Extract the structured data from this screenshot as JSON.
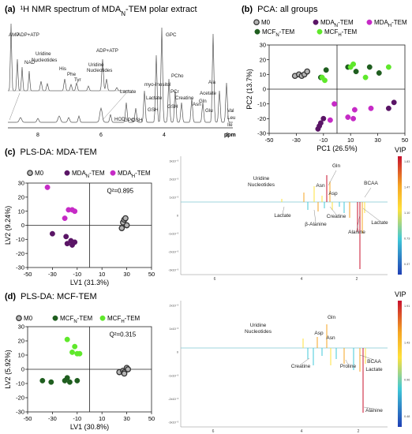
{
  "colors": {
    "m0_fill": "#b5b5b5",
    "m0_stroke": "#333333",
    "mdaN": "#5a1566",
    "mdaH": "#c62ac6",
    "mcfN": "#1f5e1f",
    "mcfH": "#5fe82b",
    "axis": "#222222",
    "spectrum": "#555555",
    "vip_top": "#c8102e",
    "vip_upper": "#f5a623",
    "vip_mid": "#ffe13b",
    "vip_lower": "#40c8d8",
    "vip_bottom": "#1f3fb5"
  },
  "panels": {
    "a": {
      "letter": "(a)",
      "title_prefix": "¹H NMR spectrum of MDA",
      "title_sub": "N",
      "title_suffix": "-TEM polar extract",
      "labels": [
        "AMP",
        "ADP+ATP",
        "NAD⁺",
        "Uridine",
        "Nucleotides",
        "His",
        "Phe",
        "Tyr",
        "ADP+ATP",
        "Uridine",
        "Nucleotides",
        "GPC",
        "Lactate",
        "myo-Inositol",
        "PCho",
        "PCr",
        "Creatine",
        "GSH",
        "Lactate",
        "GSH",
        "GPC",
        "HOD",
        "GSH",
        "Asn",
        "Gln",
        "Glu",
        "Acetate",
        "Ala",
        "Val",
        "Leu",
        "Ile"
      ],
      "ticks": [
        "8",
        "6",
        "4",
        "2",
        "ppm"
      ]
    },
    "b": {
      "letter": "(b)",
      "title": "PCA: all groups"
    },
    "c": {
      "letter": "(c)",
      "title": "PLS-DA: MDA-TEM",
      "vip": {
        "labels": [
          "Uridine",
          "Nucleotides",
          "Gln",
          "Asn",
          "Asp",
          "BCAA",
          "Lactate",
          "Creatine",
          "β-Alanine",
          "Alanine",
          "Lactate"
        ],
        "ticks": [
          "6",
          "4",
          "2"
        ]
      }
    },
    "d": {
      "letter": "(d)",
      "title": "PLS-DA: MCF-TEM",
      "vip": {
        "labels": [
          "Uridine",
          "Nucleotides",
          "Gln",
          "Asp",
          "Asn",
          "Creatine",
          "Proline",
          "BCAA",
          "Lactate",
          "Alanine"
        ],
        "ticks": [
          "6",
          "4",
          "2"
        ]
      }
    }
  },
  "chart_data": [
    {
      "id": "b",
      "type": "scatter",
      "title": "PCA: all groups",
      "xlabel": "PC1 (26.5%)",
      "ylabel": "PC2 (13.7%)",
      "xlim": [
        -50,
        50
      ],
      "ylim": [
        -30,
        30
      ],
      "xticks": [
        -50,
        -30,
        -10,
        10,
        30,
        50
      ],
      "yticks": [
        -30,
        -20,
        -10,
        0,
        10,
        20,
        30
      ],
      "legend": [
        "M0",
        "MDAN-TEM",
        "MDAH-TEM",
        "MCFN-TEM",
        "MCFH-TEM"
      ],
      "legend_display": [
        {
          "pre": "M0",
          "sub": "",
          "post": ""
        },
        {
          "pre": "MDA",
          "sub": "N",
          "post": "-TEM"
        },
        {
          "pre": "MDA",
          "sub": "H",
          "post": "-TEM"
        },
        {
          "pre": "MCF",
          "sub": "N",
          "post": "-TEM"
        },
        {
          "pre": "MCF",
          "sub": "H",
          "post": "-TEM"
        }
      ],
      "series": [
        {
          "name": "M0",
          "color_key": "m0",
          "points": [
            [
              -31,
              9
            ],
            [
              -28,
              10
            ],
            [
              -26,
              9
            ],
            [
              -24,
              10
            ],
            [
              -22,
              12
            ]
          ]
        },
        {
          "name": "MDAN-TEM",
          "color_key": "mdaN",
          "points": [
            [
              -14,
              -27
            ],
            [
              -13,
              -25
            ],
            [
              -12,
              -23
            ],
            [
              -10,
              -20
            ],
            [
              38,
              -13
            ],
            [
              42,
              -9
            ]
          ]
        },
        {
          "name": "MDAH-TEM",
          "color_key": "mdaH",
          "points": [
            [
              -5,
              -21
            ],
            [
              -2,
              -10
            ],
            [
              8,
              -19
            ],
            [
              12,
              -20
            ],
            [
              13,
              -14
            ],
            [
              25,
              -13
            ]
          ]
        },
        {
          "name": "MCFN-TEM",
          "color_key": "mcfN",
          "points": [
            [
              -12,
              8
            ],
            [
              -8,
              13
            ],
            [
              8,
              15
            ],
            [
              14,
              12
            ],
            [
              24,
              15
            ],
            [
              31,
              11
            ]
          ]
        },
        {
          "name": "MCFH-TEM",
          "color_key": "mcfH",
          "points": [
            [
              -11,
              8
            ],
            [
              -9,
              6
            ],
            [
              10,
              15
            ],
            [
              12,
              17
            ],
            [
              21,
              8
            ],
            [
              38,
              15
            ]
          ]
        }
      ]
    },
    {
      "id": "c",
      "type": "scatter",
      "title": "PLS-DA: MDA-TEM",
      "xlabel": "LV1 (31.3%)",
      "ylabel": "LV2 (9.24%)",
      "xlim": [
        -50,
        50
      ],
      "ylim": [
        -30,
        30
      ],
      "xticks": [
        -50,
        -30,
        -10,
        10,
        30,
        50
      ],
      "yticks": [
        -30,
        -20,
        -10,
        0,
        10,
        20,
        30
      ],
      "annotation": "Q²=0.895",
      "legend": [
        "M0",
        "MDAN-TEM",
        "MDAH-TEM"
      ],
      "legend_display": [
        {
          "pre": "M0",
          "sub": "",
          "post": ""
        },
        {
          "pre": "MDA",
          "sub": "N",
          "post": "-TEM"
        },
        {
          "pre": "MDA",
          "sub": "H",
          "post": "-TEM"
        }
      ],
      "series": [
        {
          "name": "M0",
          "color_key": "m0",
          "points": [
            [
              26,
              -2
            ],
            [
              27,
              2
            ],
            [
              28,
              4
            ],
            [
              29,
              5
            ],
            [
              30,
              0
            ]
          ]
        },
        {
          "name": "MDAN-TEM",
          "color_key": "mdaN",
          "points": [
            [
              -30,
              -6
            ],
            [
              -19,
              -8
            ],
            [
              -18,
              -13
            ],
            [
              -15,
              -11
            ],
            [
              -14,
              -14
            ],
            [
              -12,
              -12
            ]
          ]
        },
        {
          "name": "MDAH-TEM",
          "color_key": "mdaH",
          "points": [
            [
              -34,
              27
            ],
            [
              -20,
              5
            ],
            [
              -17,
              11
            ],
            [
              -14,
              11
            ],
            [
              -12,
              10
            ]
          ]
        }
      ]
    },
    {
      "id": "d",
      "type": "scatter",
      "title": "PLS-DA: MCF-TEM",
      "xlabel": "LV1 (30.8%)",
      "ylabel": "LV2 (5.92%)",
      "xlim": [
        -50,
        50
      ],
      "ylim": [
        -30,
        30
      ],
      "xticks": [
        -50,
        -30,
        -10,
        10,
        30,
        50
      ],
      "yticks": [
        -30,
        -20,
        -10,
        0,
        10,
        20,
        30
      ],
      "annotation": "Q²=0.315",
      "legend": [
        "M0",
        "MCFN-TEM",
        "MCFH-TEM"
      ],
      "legend_display": [
        {
          "pre": "M0",
          "sub": "",
          "post": ""
        },
        {
          "pre": "MCF",
          "sub": "N",
          "post": "-TEM"
        },
        {
          "pre": "MCF",
          "sub": "H",
          "post": "-TEM"
        }
      ],
      "series": [
        {
          "name": "M0",
          "color_key": "m0",
          "points": [
            [
              24,
              -2
            ],
            [
              27,
              -1
            ],
            [
              28,
              -2
            ],
            [
              28,
              -3
            ],
            [
              30,
              1
            ],
            [
              31,
              0
            ]
          ]
        },
        {
          "name": "MCFN-TEM",
          "color_key": "mcfN",
          "points": [
            [
              -38,
              -8
            ],
            [
              -31,
              -9
            ],
            [
              -20,
              -8
            ],
            [
              -18,
              -6
            ],
            [
              -16,
              -9
            ],
            [
              -10,
              -8
            ]
          ]
        },
        {
          "name": "MCFH-TEM",
          "color_key": "mcfH",
          "points": [
            [
              -18,
              21
            ],
            [
              -14,
              12
            ],
            [
              -12,
              16
            ],
            [
              -10,
              11
            ],
            [
              -8,
              11
            ]
          ]
        }
      ]
    },
    {
      "id": "c_vip",
      "type": "line",
      "ylabel": "VIP",
      "colorbar_ticks": [
        "1.83",
        "1.47",
        "1.10",
        "0.73",
        "0.37"
      ],
      "yticks": [
        "3x10⁻³",
        "2x10⁻³",
        "1x10⁻³",
        "0",
        "-1x10⁻³",
        "-2x10⁻³",
        "-3x10⁻³"
      ]
    },
    {
      "id": "d_vip",
      "type": "line",
      "ylabel": "VIP",
      "colorbar_ticks": [
        "1.91",
        "1.43",
        "0.96",
        "0.48"
      ],
      "yticks": [
        "2x10⁻³",
        "1x10⁻³",
        "0",
        "-1x10⁻³",
        "-2x10⁻³",
        "-3x10⁻³"
      ]
    }
  ]
}
